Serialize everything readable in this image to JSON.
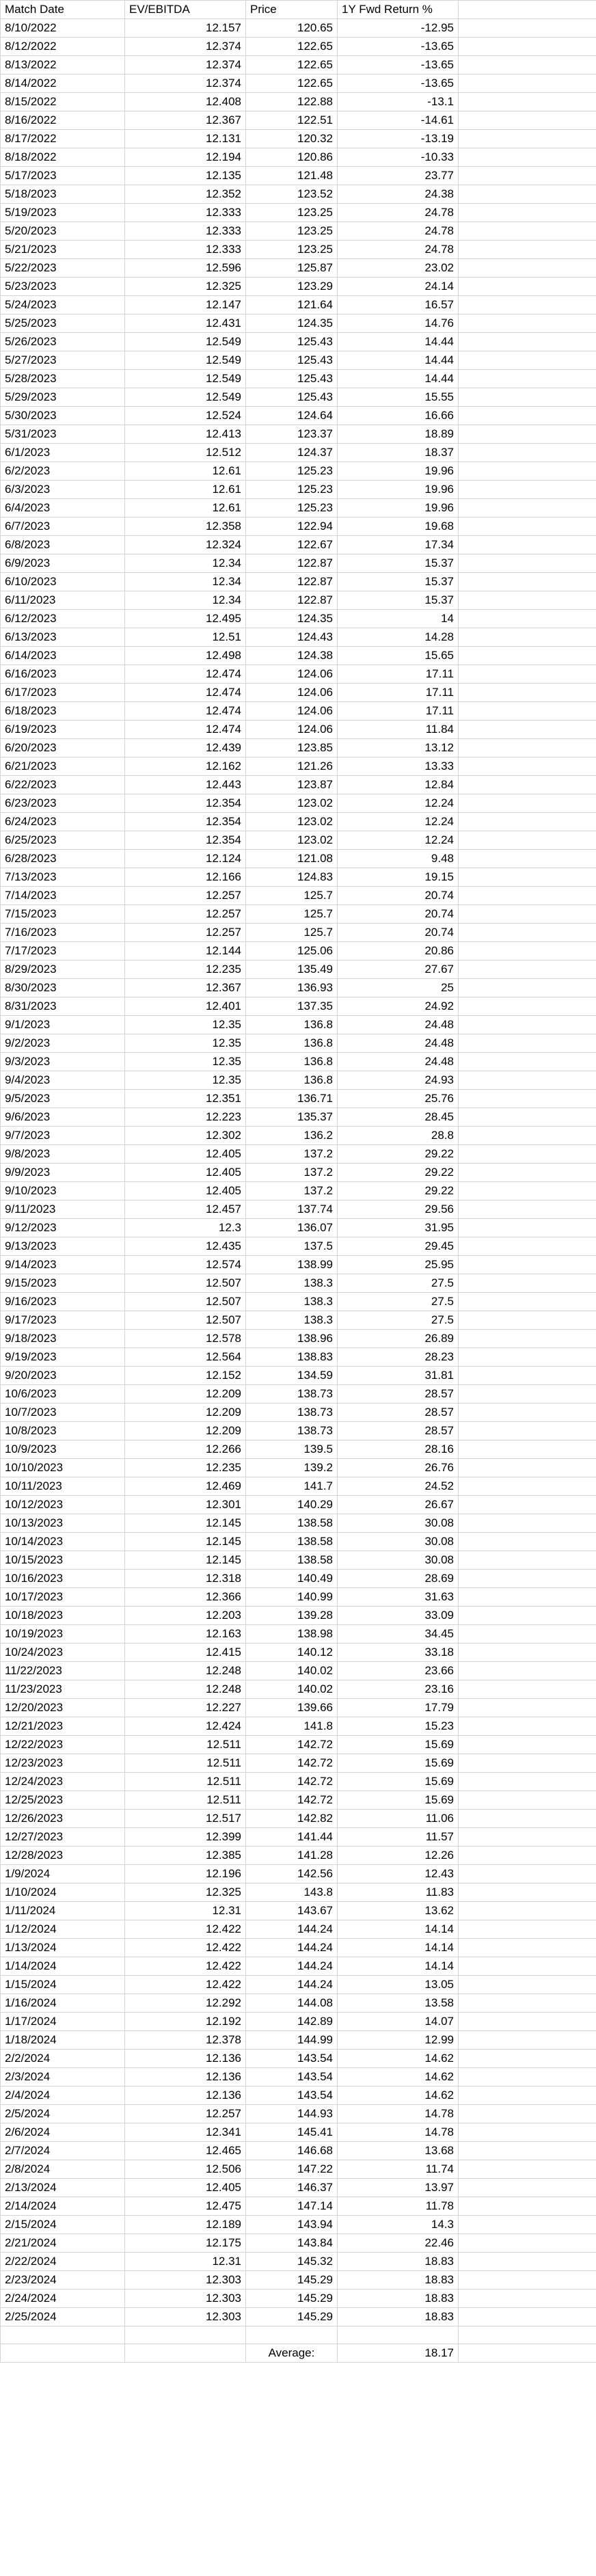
{
  "headers": [
    "Match Date",
    "EV/EBITDA",
    "Price",
    "1Y Fwd Return %",
    ""
  ],
  "rows": [
    [
      "8/10/2022",
      "12.157",
      "120.65",
      "-12.95"
    ],
    [
      "8/12/2022",
      "12.374",
      "122.65",
      "-13.65"
    ],
    [
      "8/13/2022",
      "12.374",
      "122.65",
      "-13.65"
    ],
    [
      "8/14/2022",
      "12.374",
      "122.65",
      "-13.65"
    ],
    [
      "8/15/2022",
      "12.408",
      "122.88",
      "-13.1"
    ],
    [
      "8/16/2022",
      "12.367",
      "122.51",
      "-14.61"
    ],
    [
      "8/17/2022",
      "12.131",
      "120.32",
      "-13.19"
    ],
    [
      "8/18/2022",
      "12.194",
      "120.86",
      "-10.33"
    ],
    [
      "5/17/2023",
      "12.135",
      "121.48",
      "23.77"
    ],
    [
      "5/18/2023",
      "12.352",
      "123.52",
      "24.38"
    ],
    [
      "5/19/2023",
      "12.333",
      "123.25",
      "24.78"
    ],
    [
      "5/20/2023",
      "12.333",
      "123.25",
      "24.78"
    ],
    [
      "5/21/2023",
      "12.333",
      "123.25",
      "24.78"
    ],
    [
      "5/22/2023",
      "12.596",
      "125.87",
      "23.02"
    ],
    [
      "5/23/2023",
      "12.325",
      "123.29",
      "24.14"
    ],
    [
      "5/24/2023",
      "12.147",
      "121.64",
      "16.57"
    ],
    [
      "5/25/2023",
      "12.431",
      "124.35",
      "14.76"
    ],
    [
      "5/26/2023",
      "12.549",
      "125.43",
      "14.44"
    ],
    [
      "5/27/2023",
      "12.549",
      "125.43",
      "14.44"
    ],
    [
      "5/28/2023",
      "12.549",
      "125.43",
      "14.44"
    ],
    [
      "5/29/2023",
      "12.549",
      "125.43",
      "15.55"
    ],
    [
      "5/30/2023",
      "12.524",
      "124.64",
      "16.66"
    ],
    [
      "5/31/2023",
      "12.413",
      "123.37",
      "18.89"
    ],
    [
      "6/1/2023",
      "12.512",
      "124.37",
      "18.37"
    ],
    [
      "6/2/2023",
      "12.61",
      "125.23",
      "19.96"
    ],
    [
      "6/3/2023",
      "12.61",
      "125.23",
      "19.96"
    ],
    [
      "6/4/2023",
      "12.61",
      "125.23",
      "19.96"
    ],
    [
      "6/7/2023",
      "12.358",
      "122.94",
      "19.68"
    ],
    [
      "6/8/2023",
      "12.324",
      "122.67",
      "17.34"
    ],
    [
      "6/9/2023",
      "12.34",
      "122.87",
      "15.37"
    ],
    [
      "6/10/2023",
      "12.34",
      "122.87",
      "15.37"
    ],
    [
      "6/11/2023",
      "12.34",
      "122.87",
      "15.37"
    ],
    [
      "6/12/2023",
      "12.495",
      "124.35",
      "14"
    ],
    [
      "6/13/2023",
      "12.51",
      "124.43",
      "14.28"
    ],
    [
      "6/14/2023",
      "12.498",
      "124.38",
      "15.65"
    ],
    [
      "6/16/2023",
      "12.474",
      "124.06",
      "17.11"
    ],
    [
      "6/17/2023",
      "12.474",
      "124.06",
      "17.11"
    ],
    [
      "6/18/2023",
      "12.474",
      "124.06",
      "17.11"
    ],
    [
      "6/19/2023",
      "12.474",
      "124.06",
      "11.84"
    ],
    [
      "6/20/2023",
      "12.439",
      "123.85",
      "13.12"
    ],
    [
      "6/21/2023",
      "12.162",
      "121.26",
      "13.33"
    ],
    [
      "6/22/2023",
      "12.443",
      "123.87",
      "12.84"
    ],
    [
      "6/23/2023",
      "12.354",
      "123.02",
      "12.24"
    ],
    [
      "6/24/2023",
      "12.354",
      "123.02",
      "12.24"
    ],
    [
      "6/25/2023",
      "12.354",
      "123.02",
      "12.24"
    ],
    [
      "6/28/2023",
      "12.124",
      "121.08",
      "9.48"
    ],
    [
      "7/13/2023",
      "12.166",
      "124.83",
      "19.15"
    ],
    [
      "7/14/2023",
      "12.257",
      "125.7",
      "20.74"
    ],
    [
      "7/15/2023",
      "12.257",
      "125.7",
      "20.74"
    ],
    [
      "7/16/2023",
      "12.257",
      "125.7",
      "20.74"
    ],
    [
      "7/17/2023",
      "12.144",
      "125.06",
      "20.86"
    ],
    [
      "8/29/2023",
      "12.235",
      "135.49",
      "27.67"
    ],
    [
      "8/30/2023",
      "12.367",
      "136.93",
      "25"
    ],
    [
      "8/31/2023",
      "12.401",
      "137.35",
      "24.92"
    ],
    [
      "9/1/2023",
      "12.35",
      "136.8",
      "24.48"
    ],
    [
      "9/2/2023",
      "12.35",
      "136.8",
      "24.48"
    ],
    [
      "9/3/2023",
      "12.35",
      "136.8",
      "24.48"
    ],
    [
      "9/4/2023",
      "12.35",
      "136.8",
      "24.93"
    ],
    [
      "9/5/2023",
      "12.351",
      "136.71",
      "25.76"
    ],
    [
      "9/6/2023",
      "12.223",
      "135.37",
      "28.45"
    ],
    [
      "9/7/2023",
      "12.302",
      "136.2",
      "28.8"
    ],
    [
      "9/8/2023",
      "12.405",
      "137.2",
      "29.22"
    ],
    [
      "9/9/2023",
      "12.405",
      "137.2",
      "29.22"
    ],
    [
      "9/10/2023",
      "12.405",
      "137.2",
      "29.22"
    ],
    [
      "9/11/2023",
      "12.457",
      "137.74",
      "29.56"
    ],
    [
      "9/12/2023",
      "12.3",
      "136.07",
      "31.95"
    ],
    [
      "9/13/2023",
      "12.435",
      "137.5",
      "29.45"
    ],
    [
      "9/14/2023",
      "12.574",
      "138.99",
      "25.95"
    ],
    [
      "9/15/2023",
      "12.507",
      "138.3",
      "27.5"
    ],
    [
      "9/16/2023",
      "12.507",
      "138.3",
      "27.5"
    ],
    [
      "9/17/2023",
      "12.507",
      "138.3",
      "27.5"
    ],
    [
      "9/18/2023",
      "12.578",
      "138.96",
      "26.89"
    ],
    [
      "9/19/2023",
      "12.564",
      "138.83",
      "28.23"
    ],
    [
      "9/20/2023",
      "12.152",
      "134.59",
      "31.81"
    ],
    [
      "10/6/2023",
      "12.209",
      "138.73",
      "28.57"
    ],
    [
      "10/7/2023",
      "12.209",
      "138.73",
      "28.57"
    ],
    [
      "10/8/2023",
      "12.209",
      "138.73",
      "28.57"
    ],
    [
      "10/9/2023",
      "12.266",
      "139.5",
      "28.16"
    ],
    [
      "10/10/2023",
      "12.235",
      "139.2",
      "26.76"
    ],
    [
      "10/11/2023",
      "12.469",
      "141.7",
      "24.52"
    ],
    [
      "10/12/2023",
      "12.301",
      "140.29",
      "26.67"
    ],
    [
      "10/13/2023",
      "12.145",
      "138.58",
      "30.08"
    ],
    [
      "10/14/2023",
      "12.145",
      "138.58",
      "30.08"
    ],
    [
      "10/15/2023",
      "12.145",
      "138.58",
      "30.08"
    ],
    [
      "10/16/2023",
      "12.318",
      "140.49",
      "28.69"
    ],
    [
      "10/17/2023",
      "12.366",
      "140.99",
      "31.63"
    ],
    [
      "10/18/2023",
      "12.203",
      "139.28",
      "33.09"
    ],
    [
      "10/19/2023",
      "12.163",
      "138.98",
      "34.45"
    ],
    [
      "10/24/2023",
      "12.415",
      "140.12",
      "33.18"
    ],
    [
      "11/22/2023",
      "12.248",
      "140.02",
      "23.66"
    ],
    [
      "11/23/2023",
      "12.248",
      "140.02",
      "23.16"
    ],
    [
      "12/20/2023",
      "12.227",
      "139.66",
      "17.79"
    ],
    [
      "12/21/2023",
      "12.424",
      "141.8",
      "15.23"
    ],
    [
      "12/22/2023",
      "12.511",
      "142.72",
      "15.69"
    ],
    [
      "12/23/2023",
      "12.511",
      "142.72",
      "15.69"
    ],
    [
      "12/24/2023",
      "12.511",
      "142.72",
      "15.69"
    ],
    [
      "12/25/2023",
      "12.511",
      "142.72",
      "15.69"
    ],
    [
      "12/26/2023",
      "12.517",
      "142.82",
      "11.06"
    ],
    [
      "12/27/2023",
      "12.399",
      "141.44",
      "11.57"
    ],
    [
      "12/28/2023",
      "12.385",
      "141.28",
      "12.26"
    ],
    [
      "1/9/2024",
      "12.196",
      "142.56",
      "12.43"
    ],
    [
      "1/10/2024",
      "12.325",
      "143.8",
      "11.83"
    ],
    [
      "1/11/2024",
      "12.31",
      "143.67",
      "13.62"
    ],
    [
      "1/12/2024",
      "12.422",
      "144.24",
      "14.14"
    ],
    [
      "1/13/2024",
      "12.422",
      "144.24",
      "14.14"
    ],
    [
      "1/14/2024",
      "12.422",
      "144.24",
      "14.14"
    ],
    [
      "1/15/2024",
      "12.422",
      "144.24",
      "13.05"
    ],
    [
      "1/16/2024",
      "12.292",
      "144.08",
      "13.58"
    ],
    [
      "1/17/2024",
      "12.192",
      "142.89",
      "14.07"
    ],
    [
      "1/18/2024",
      "12.378",
      "144.99",
      "12.99"
    ],
    [
      "2/2/2024",
      "12.136",
      "143.54",
      "14.62"
    ],
    [
      "2/3/2024",
      "12.136",
      "143.54",
      "14.62"
    ],
    [
      "2/4/2024",
      "12.136",
      "143.54",
      "14.62"
    ],
    [
      "2/5/2024",
      "12.257",
      "144.93",
      "14.78"
    ],
    [
      "2/6/2024",
      "12.341",
      "145.41",
      "14.78"
    ],
    [
      "2/7/2024",
      "12.465",
      "146.68",
      "13.68"
    ],
    [
      "2/8/2024",
      "12.506",
      "147.22",
      "11.74"
    ],
    [
      "2/13/2024",
      "12.405",
      "146.37",
      "13.97"
    ],
    [
      "2/14/2024",
      "12.475",
      "147.14",
      "11.78"
    ],
    [
      "2/15/2024",
      "12.189",
      "143.94",
      "14.3"
    ],
    [
      "2/21/2024",
      "12.175",
      "143.84",
      "22.46"
    ],
    [
      "2/22/2024",
      "12.31",
      "145.32",
      "18.83"
    ],
    [
      "2/23/2024",
      "12.303",
      "145.29",
      "18.83"
    ],
    [
      "2/24/2024",
      "12.303",
      "145.29",
      "18.83"
    ],
    [
      "2/25/2024",
      "12.303",
      "145.29",
      "18.83"
    ]
  ],
  "average": {
    "label": "Average:",
    "value": "18.17"
  },
  "colors": {
    "gridline": "#d4d4d4",
    "faint_column_text": "#e9f1ea"
  }
}
